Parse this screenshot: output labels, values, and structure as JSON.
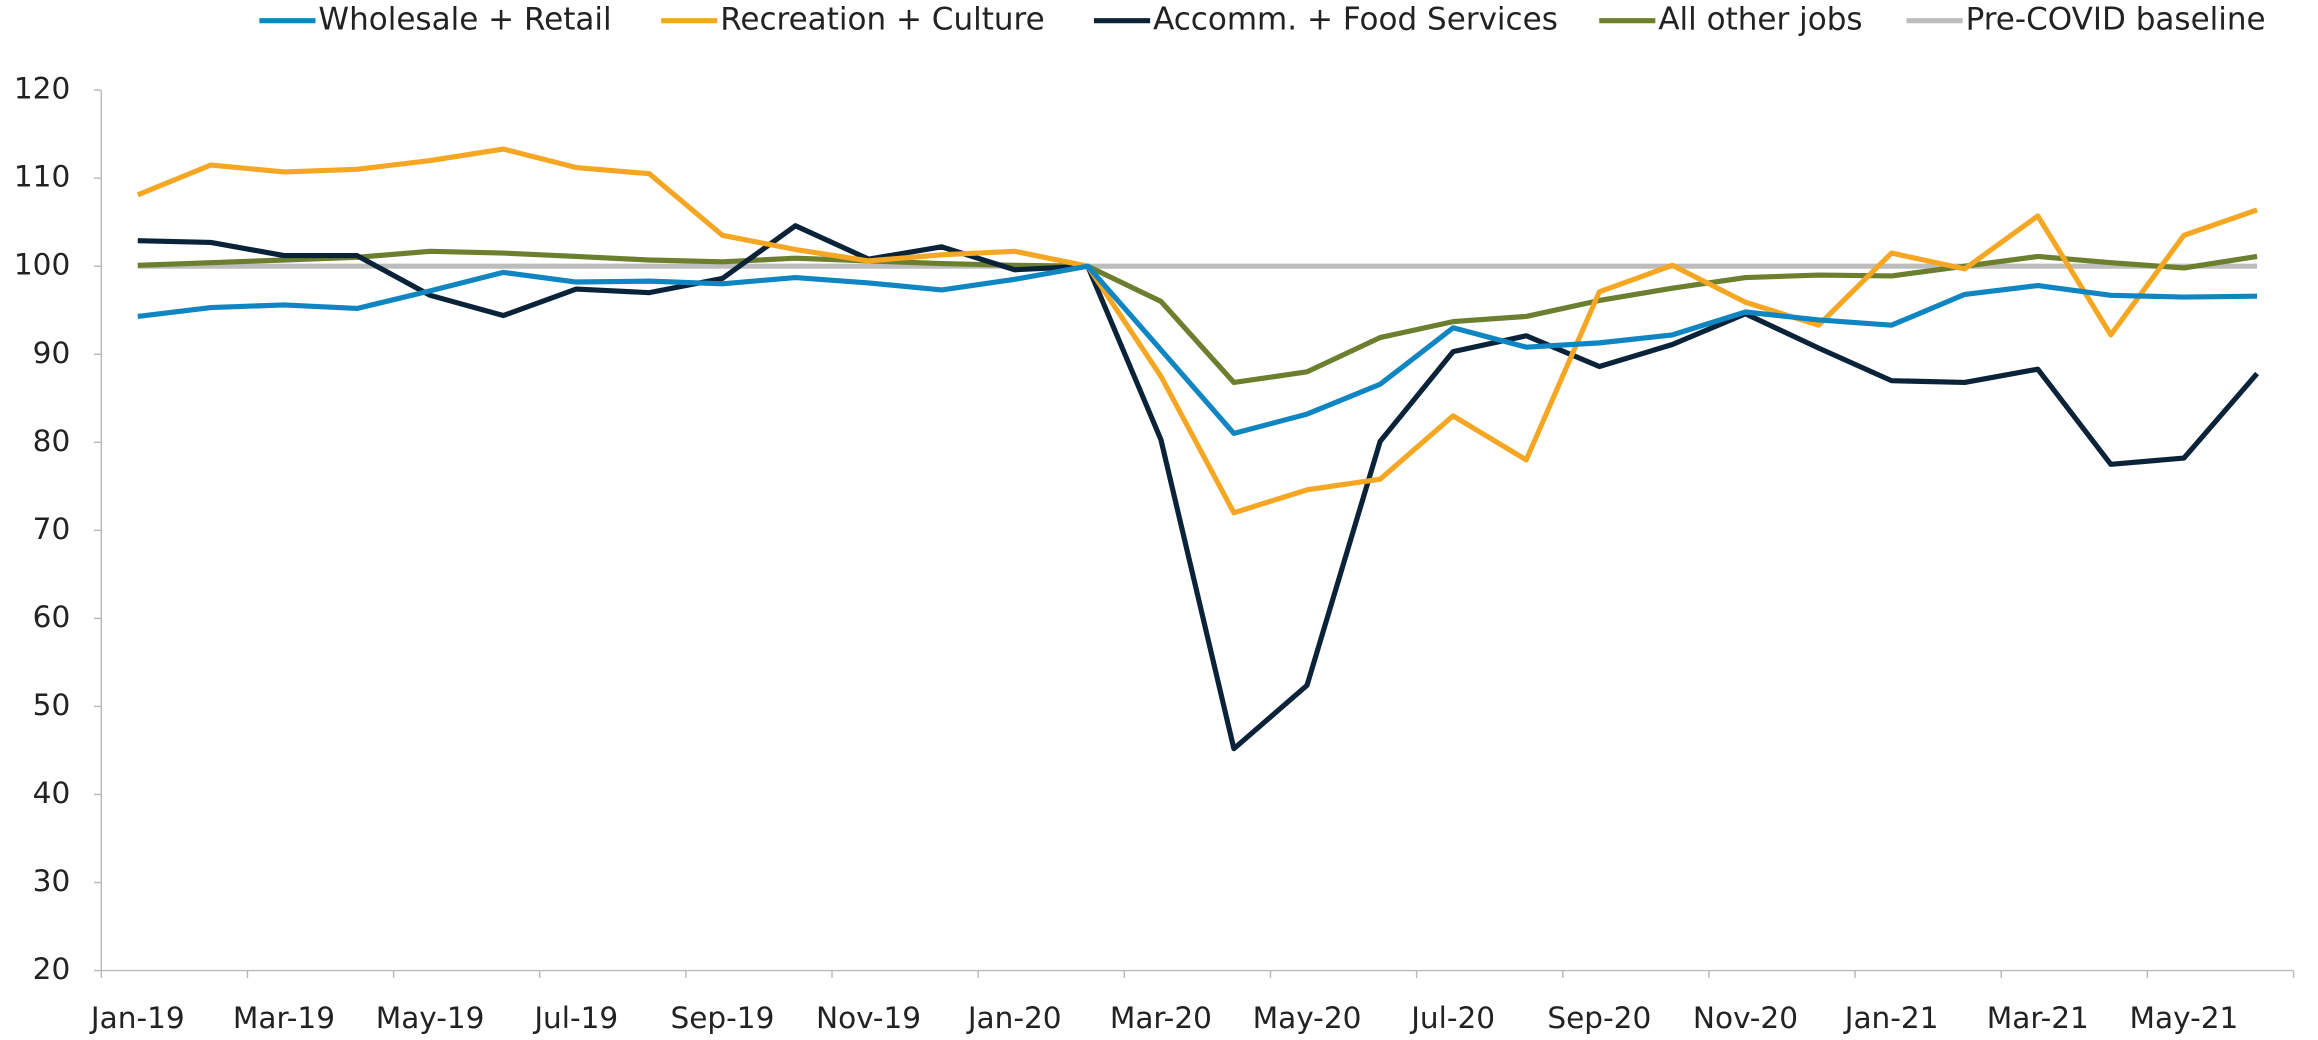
{
  "chart_data": {
    "type": "line",
    "categories": [
      "Jan-19",
      null,
      "Mar-19",
      null,
      "May-19",
      null,
      "Jul-19",
      null,
      "Sep-19",
      null,
      "Nov-19",
      null,
      "Jan-20",
      null,
      "Mar-20",
      null,
      "May-20",
      null,
      "Jul-20",
      null,
      "Sep-20",
      null,
      "Nov-20",
      null,
      "Jan-21",
      null,
      "Mar-21",
      null,
      "May-21",
      null
    ],
    "series": [
      {
        "name": "Wholesale + Retail",
        "color": "#0f86c2",
        "values": [
          94.3,
          95.3,
          95.6,
          95.2,
          97.2,
          99.3,
          98.2,
          98.3,
          98.0,
          98.7,
          98.1,
          97.3,
          98.5,
          100,
          90.5,
          81.0,
          83.2,
          86.6,
          93.0,
          90.8,
          91.3,
          92.2,
          94.8,
          93.9,
          93.3,
          96.8,
          97.8,
          96.7,
          96.5,
          96.6
        ]
      },
      {
        "name": "Recreation + Culture",
        "color": "#f5a623",
        "values": [
          108.1,
          111.5,
          110.7,
          111.0,
          112.0,
          113.3,
          111.2,
          110.5,
          103.5,
          101.9,
          100.6,
          101.3,
          101.7,
          100,
          87.5,
          72.0,
          74.6,
          75.8,
          83.0,
          78.0,
          97.1,
          100.1,
          95.9,
          93.3,
          101.5,
          99.7,
          105.7,
          92.2,
          103.5,
          106.4
        ]
      },
      {
        "name": "Accomm. + Food Services",
        "color": "#0b2339",
        "values": [
          102.9,
          102.7,
          101.2,
          101.2,
          96.7,
          94.4,
          97.4,
          97.0,
          98.6,
          104.6,
          100.8,
          102.2,
          99.6,
          100,
          80.3,
          45.2,
          52.4,
          80.1,
          90.3,
          92.1,
          88.6,
          91.1,
          94.6,
          90.7,
          87.0,
          86.8,
          88.3,
          77.5,
          78.2,
          87.8
        ]
      },
      {
        "name": "All other jobs",
        "color": "#6b7f2e",
        "values": [
          100.1,
          100.4,
          100.7,
          101.0,
          101.7,
          101.5,
          101.1,
          100.7,
          100.5,
          100.9,
          100.6,
          100.3,
          100.1,
          100,
          96.0,
          86.8,
          88.0,
          91.9,
          93.7,
          94.3,
          96.1,
          97.5,
          98.7,
          99.0,
          98.9,
          100.0,
          101.1,
          100.4,
          99.8,
          101.1
        ]
      },
      {
        "name": "Pre-COVID baseline",
        "color": "#bdbdbd",
        "values": [
          100,
          100,
          100,
          100,
          100,
          100,
          100,
          100,
          100,
          100,
          100,
          100,
          100,
          100,
          100,
          100,
          100,
          100,
          100,
          100,
          100,
          100,
          100,
          100,
          100,
          100,
          100,
          100,
          100,
          100
        ]
      }
    ],
    "ylim": [
      20,
      120
    ],
    "yticks": [
      20,
      30,
      40,
      50,
      60,
      70,
      80,
      90,
      100,
      110,
      120
    ],
    "legend": "top"
  }
}
